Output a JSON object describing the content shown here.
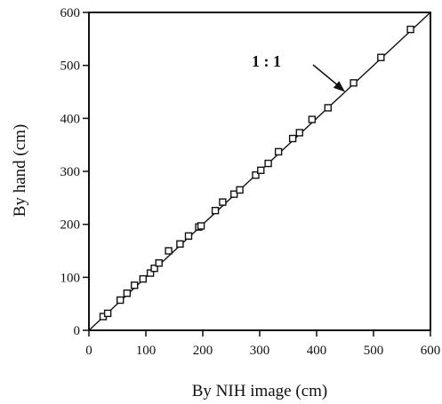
{
  "chart_data": {
    "type": "scatter",
    "title": "",
    "xlabel": "By NIH image (cm)",
    "ylabel": "By hand (cm)",
    "xlim": [
      0,
      600
    ],
    "ylim": [
      0,
      600
    ],
    "x_ticks": [
      0,
      100,
      200,
      300,
      400,
      500,
      600
    ],
    "y_ticks": [
      0,
      100,
      200,
      300,
      400,
      500,
      600
    ],
    "grid": false,
    "marker": "open-square",
    "series": [
      {
        "points": [
          [
            25,
            26
          ],
          [
            33,
            32
          ],
          [
            55,
            57
          ],
          [
            67,
            70
          ],
          [
            80,
            85
          ],
          [
            95,
            97
          ],
          [
            108,
            108
          ],
          [
            115,
            117
          ],
          [
            123,
            127
          ],
          [
            140,
            150
          ],
          [
            160,
            163
          ],
          [
            175,
            178
          ],
          [
            193,
            195
          ],
          [
            197,
            197
          ],
          [
            222,
            226
          ],
          [
            235,
            242
          ],
          [
            255,
            257
          ],
          [
            265,
            265
          ],
          [
            293,
            293
          ],
          [
            302,
            302
          ],
          [
            315,
            315
          ],
          [
            333,
            337
          ],
          [
            358,
            362
          ],
          [
            370,
            373
          ],
          [
            392,
            398
          ],
          [
            420,
            420
          ],
          [
            465,
            467
          ],
          [
            513,
            515
          ],
          [
            565,
            568
          ]
        ]
      }
    ],
    "reference_line": {
      "x": [
        0,
        600
      ],
      "y": [
        0,
        600
      ]
    },
    "annotations": [
      {
        "text": "1 : 1",
        "arrow_to": [
          450,
          450
        ]
      }
    ]
  }
}
